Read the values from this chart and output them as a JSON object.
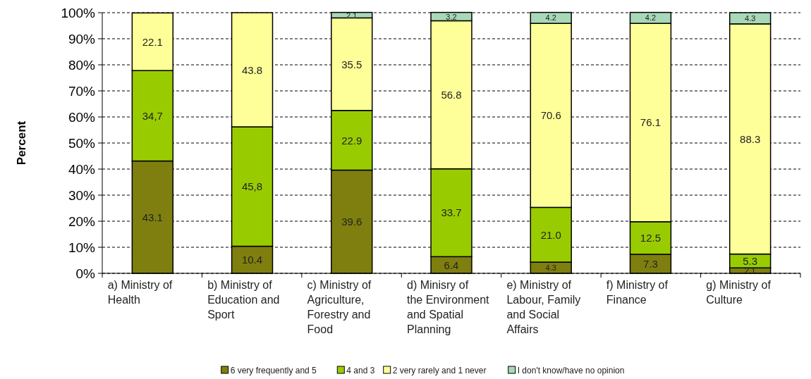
{
  "chart_data": {
    "type": "bar",
    "stacked": true,
    "ylabel": "Percent",
    "categories": [
      "a) Ministry of Health",
      "b) Ministry of Education and Sport",
      "c) Ministry of Agriculture, Forestry and Food",
      "d) Minisry of the Environment and Spatial Planning",
      "e) Ministry of Labour, Family and Social Affairs",
      "f) Ministry of Finance",
      "g) Ministry of Culture"
    ],
    "series": [
      {
        "name": "6 very frequently and 5",
        "color": "#7f7f0f",
        "values": [
          43.1,
          10.4,
          39.6,
          6.4,
          4.3,
          7.3,
          2.1
        ],
        "value_labels": [
          "43.1",
          "10.4",
          "39.6",
          "6.4",
          "4.3",
          "7.3",
          "2.1"
        ]
      },
      {
        "name": "4 and 3",
        "color": "#99cc00",
        "values": [
          34.7,
          45.8,
          22.9,
          33.7,
          21.0,
          12.5,
          5.3
        ],
        "value_labels": [
          "34,7",
          "45,8",
          "22.9",
          "33.7",
          "21.0",
          "12.5",
          "5.3"
        ]
      },
      {
        "name": "2 very rarely and 1 never",
        "color": "#ffff99",
        "values": [
          22.1,
          43.8,
          35.5,
          56.8,
          70.6,
          76.1,
          88.3
        ],
        "value_labels": [
          "22.1",
          "43.8",
          "35.5",
          "56.8",
          "70.6",
          "76.1",
          "88.3"
        ]
      },
      {
        "name": "I don't know/have no opinion",
        "color": "#a8d8b8",
        "values": [
          null,
          null,
          2.1,
          3.2,
          4.2,
          4.2,
          4.3
        ],
        "value_labels": [
          null,
          null,
          "2.1",
          "3.2",
          "4.2",
          "4.2",
          "4.3"
        ]
      }
    ],
    "ylim": [
      0,
      100
    ],
    "yticks": [
      {
        "value": 0,
        "label": "0%"
      },
      {
        "value": 10,
        "label": "10%"
      },
      {
        "value": 20,
        "label": "20%"
      },
      {
        "value": 30,
        "label": "30%"
      },
      {
        "value": 40,
        "label": "40%"
      },
      {
        "value": 50,
        "label": "50%"
      },
      {
        "value": 60,
        "label": "60%"
      },
      {
        "value": 70,
        "label": "70%"
      },
      {
        "value": 80,
        "label": "80%"
      },
      {
        "value": 90,
        "label": "90%"
      },
      {
        "value": 100,
        "label": "100%"
      }
    ],
    "grid": "y",
    "legend": "bottom"
  }
}
